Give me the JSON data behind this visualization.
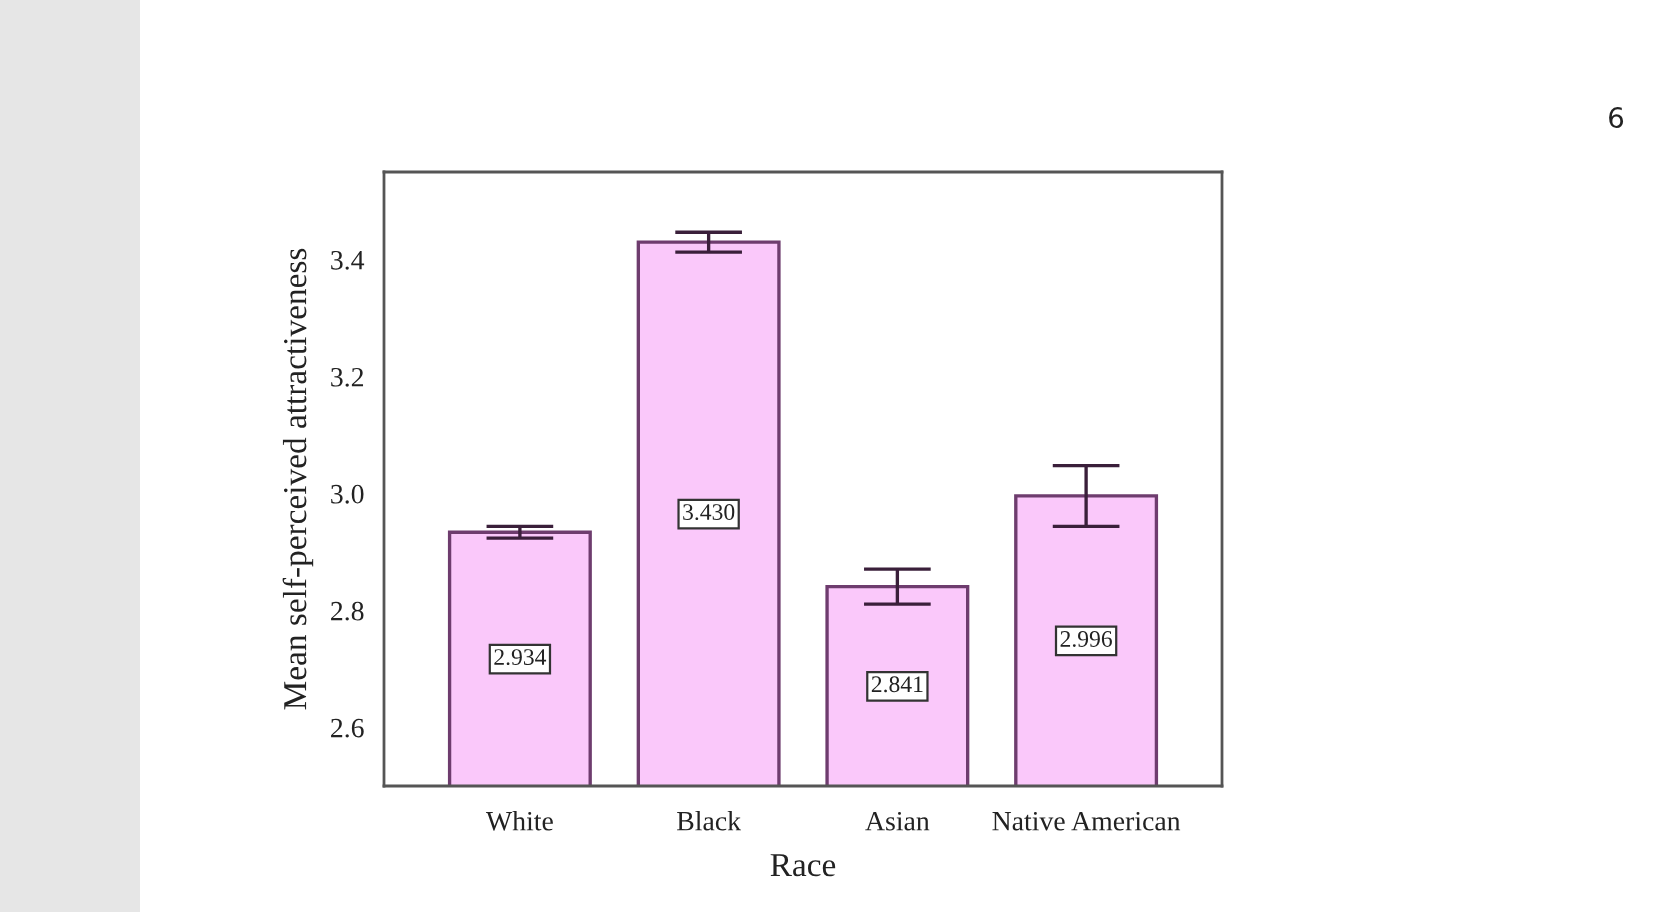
{
  "chart_data": {
    "type": "bar",
    "xlabel": "Race",
    "ylabel": "Mean self-perceived attractiveness",
    "categories": [
      "White",
      "Black",
      "Asian",
      "Native American"
    ],
    "values": [
      2.934,
      3.43,
      2.841,
      2.996
    ],
    "value_labels": [
      "2.934",
      "3.430",
      "2.841",
      "2.996"
    ],
    "errors": [
      0.01,
      0.017,
      0.03,
      0.052
    ],
    "color": "#fac8fa",
    "ylim": [
      2.5,
      3.55
    ],
    "yticks": [
      2.6,
      2.8,
      {
        "value": 3,
        "label": "3.0"
      },
      3.2,
      3.4
    ],
    "grid": false,
    "legend": false,
    "annotations": [
      "6"
    ]
  }
}
